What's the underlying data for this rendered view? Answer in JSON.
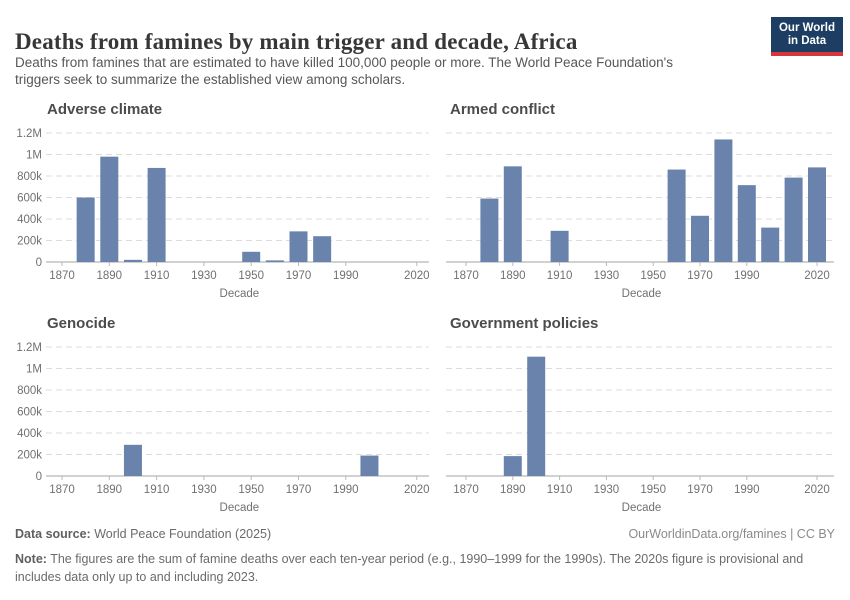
{
  "header": {
    "title": "Deaths from famines by main trigger and decade, Africa",
    "subtitle_lines": [
      "Deaths from famines that are estimated to have killed 100,000 people or more. The World Peace Foundation's",
      "triggers seek to summarize the established view among scholars."
    ],
    "logo": {
      "line1": "Our World",
      "line2": "in Data",
      "bg": "#1d3d63",
      "accent": "#d7363d"
    }
  },
  "colors": {
    "bar": "#6a83ad",
    "grid": "#dcdcdc",
    "axis_line": "#a3a3a3",
    "tick_mark": "#b9b9b9",
    "tick_text": "#6e7174"
  },
  "chart_data": [
    {
      "type": "bar",
      "title": "Adverse climate",
      "xlabel": "Decade",
      "x": [
        1870,
        1880,
        1890,
        1900,
        1910,
        1920,
        1930,
        1940,
        1950,
        1960,
        1970,
        1980,
        1990,
        2000,
        2010,
        2020
      ],
      "values": [
        0,
        600000,
        980000,
        20000,
        875000,
        0,
        0,
        0,
        95000,
        15000,
        285000,
        240000,
        0,
        0,
        0,
        0
      ],
      "ylim": [
        0,
        1200000
      ],
      "yticks": [
        [
          0,
          "0"
        ],
        [
          200000,
          "200k"
        ],
        [
          400000,
          "400k"
        ],
        [
          600000,
          "600k"
        ],
        [
          800000,
          "800k"
        ],
        [
          1000000,
          "1M"
        ],
        [
          1200000,
          "1.2M"
        ]
      ],
      "xticks": [
        1870,
        1890,
        1910,
        1930,
        1950,
        1970,
        1990,
        2020
      ]
    },
    {
      "type": "bar",
      "title": "Armed conflict",
      "xlabel": "Decade",
      "x": [
        1870,
        1880,
        1890,
        1900,
        1910,
        1920,
        1930,
        1940,
        1950,
        1960,
        1970,
        1980,
        1990,
        2000,
        2010,
        2020
      ],
      "values": [
        0,
        590000,
        890000,
        0,
        290000,
        0,
        0,
        0,
        0,
        860000,
        430000,
        1140000,
        715000,
        320000,
        785000,
        880000
      ],
      "ylim": [
        0,
        1200000
      ],
      "yticks": [
        [
          0,
          "0"
        ],
        [
          200000,
          "200k"
        ],
        [
          400000,
          "400k"
        ],
        [
          600000,
          "600k"
        ],
        [
          800000,
          "800k"
        ],
        [
          1000000,
          "1M"
        ],
        [
          1200000,
          "1.2M"
        ]
      ],
      "xticks": [
        1870,
        1890,
        1910,
        1930,
        1950,
        1970,
        1990,
        2020
      ]
    },
    {
      "type": "bar",
      "title": "Genocide",
      "xlabel": "Decade",
      "x": [
        1870,
        1880,
        1890,
        1900,
        1910,
        1920,
        1930,
        1940,
        1950,
        1960,
        1970,
        1980,
        1990,
        2000,
        2010,
        2020
      ],
      "values": [
        0,
        0,
        0,
        290000,
        0,
        0,
        0,
        0,
        0,
        0,
        0,
        0,
        0,
        190000,
        0,
        0
      ],
      "ylim": [
        0,
        1200000
      ],
      "yticks": [
        [
          0,
          "0"
        ],
        [
          200000,
          "200k"
        ],
        [
          400000,
          "400k"
        ],
        [
          600000,
          "600k"
        ],
        [
          800000,
          "800k"
        ],
        [
          1000000,
          "1M"
        ],
        [
          1200000,
          "1.2M"
        ]
      ],
      "xticks": [
        1870,
        1890,
        1910,
        1930,
        1950,
        1970,
        1990,
        2020
      ]
    },
    {
      "type": "bar",
      "title": "Government policies",
      "xlabel": "Decade",
      "x": [
        1870,
        1880,
        1890,
        1900,
        1910,
        1920,
        1930,
        1940,
        1950,
        1960,
        1970,
        1980,
        1990,
        2000,
        2010,
        2020
      ],
      "values": [
        0,
        0,
        185000,
        1110000,
        0,
        0,
        0,
        0,
        0,
        0,
        0,
        0,
        0,
        0,
        0,
        0
      ],
      "ylim": [
        0,
        1200000
      ],
      "yticks": [
        [
          0,
          "0"
        ],
        [
          200000,
          "200k"
        ],
        [
          400000,
          "400k"
        ],
        [
          600000,
          "600k"
        ],
        [
          800000,
          "800k"
        ],
        [
          1000000,
          "1M"
        ],
        [
          1200000,
          "1.2M"
        ]
      ],
      "xticks": [
        1870,
        1890,
        1910,
        1930,
        1950,
        1970,
        1990,
        2020
      ]
    }
  ],
  "footer": {
    "datasource": {
      "label": "Data source:",
      "value": " World Peace Foundation (2025)"
    },
    "link": "OurWorldinData.org/famines | CC BY",
    "note": {
      "label": "Note:",
      "line1": " The figures are the sum of famine deaths over each ten-year period (e.g., 1990–1999 for the 1990s). The 2020s figure is provisional and",
      "line2": "includes data only up to and including 2023."
    }
  }
}
